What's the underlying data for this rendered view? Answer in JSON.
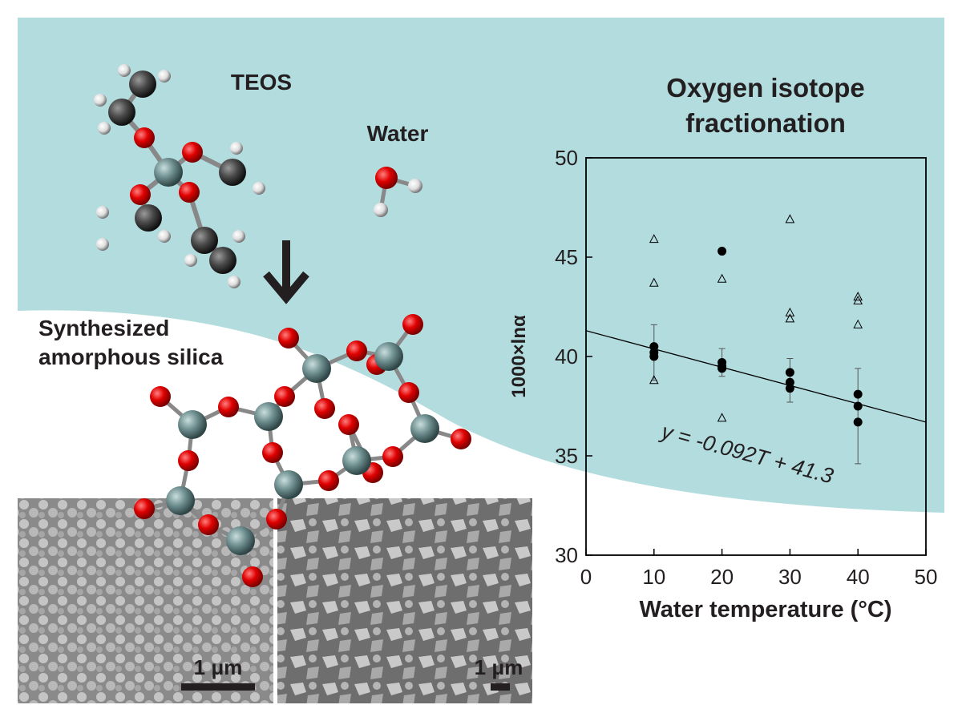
{
  "labels": {
    "teos": "TEOS",
    "water": "Water",
    "silica": "Synthesized amorphous silica",
    "scale_bars": [
      "1 μm",
      "1 μm"
    ]
  },
  "chart_data": {
    "type": "scatter",
    "title": "Oxygen isotope fractionation",
    "x_label": "Water temperature (°C)",
    "y_label": "1000×lnα",
    "xlim": [
      0,
      50
    ],
    "xticks": [
      0,
      10,
      20,
      30,
      40,
      50
    ],
    "ylim": [
      30,
      50
    ],
    "yticks": [
      30,
      35,
      40,
      45,
      50
    ],
    "grid": false,
    "series": [
      {
        "marker": "circle",
        "color": "#000000",
        "x": [
          10,
          10,
          10,
          20,
          20,
          20,
          20,
          30,
          30,
          30,
          40,
          40,
          40
        ],
        "values": [
          40.5,
          40.2,
          40.0,
          45.3,
          39.7,
          39.5,
          39.4,
          39.2,
          38.7,
          38.4,
          38.1,
          37.5,
          36.7
        ]
      },
      {
        "marker": "triangle",
        "color": "#000000",
        "x": [
          10,
          10,
          10,
          20,
          20,
          30,
          30,
          30,
          40,
          40,
          40
        ],
        "values": [
          45.9,
          43.7,
          38.8,
          43.9,
          36.9,
          46.9,
          42.2,
          41.9,
          43.0,
          42.8,
          41.6
        ]
      }
    ],
    "error_bars": {
      "x": [
        10,
        20,
        30,
        40
      ],
      "values": [
        40.2,
        39.7,
        38.8,
        37.0
      ],
      "errors": [
        1.4,
        0.7,
        1.1,
        2.4
      ]
    },
    "fit": {
      "slope": -0.092,
      "intercept": 41.3,
      "label": "y = -0.092T + 41.3"
    }
  }
}
